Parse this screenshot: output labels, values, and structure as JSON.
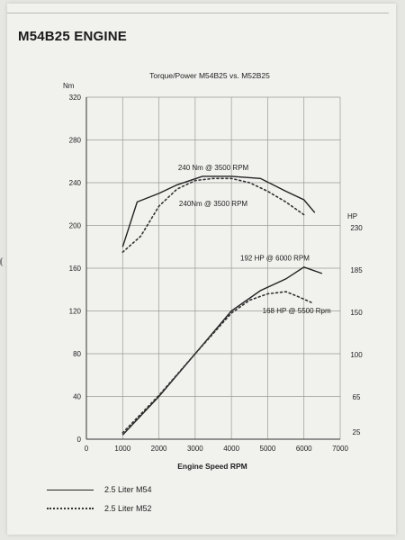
{
  "page": {
    "heading": "M54B25 ENGINE"
  },
  "chart_data": {
    "type": "line",
    "title": "Torque/Power M54B25 vs. M52B25",
    "xlabel": "Engine Speed RPM",
    "xlim": [
      0,
      7000
    ],
    "x_ticks": [
      0,
      1000,
      2000,
      3000,
      4000,
      5000,
      6000,
      7000
    ],
    "grid": true,
    "left_axis": {
      "unit": "Nm",
      "ylim": [
        0,
        320
      ],
      "ticks": [
        0,
        40,
        80,
        120,
        160,
        200,
        240,
        280,
        320
      ]
    },
    "right_axis": {
      "unit": "HP",
      "tick_labels": [
        "25",
        "65",
        "100",
        "150",
        "185",
        "230"
      ]
    },
    "series": [
      {
        "name": "2.5 Liter M54",
        "axis": "left",
        "style": "solid",
        "color": "#222222",
        "x": [
          1000,
          1400,
          2000,
          2500,
          3200,
          4000,
          4800,
          5500,
          6000,
          6300
        ],
        "y": [
          180,
          222,
          230,
          238,
          246,
          246,
          244,
          232,
          224,
          212
        ]
      },
      {
        "name": "2.5 Liter M52",
        "axis": "left",
        "style": "dotted",
        "color": "#333333",
        "x": [
          1000,
          1500,
          2000,
          2500,
          3000,
          3500,
          4000,
          4500,
          5000,
          5500,
          6000
        ],
        "y": [
          175,
          190,
          218,
          234,
          242,
          244,
          244,
          240,
          232,
          222,
          210
        ]
      },
      {
        "name": "2.5 Liter M54",
        "axis": "left",
        "style": "solid",
        "color": "#222222",
        "x": [
          1000,
          2000,
          3000,
          4000,
          4800,
          5500,
          6000,
          6500
        ],
        "y": [
          4,
          40,
          80,
          120,
          139,
          150,
          161,
          155
        ]
      },
      {
        "name": "2.5 Liter M52",
        "axis": "left",
        "style": "dotted",
        "color": "#333333",
        "x": [
          1000,
          2000,
          3000,
          4000,
          4500,
          5000,
          5500,
          5800,
          6200
        ],
        "y": [
          6,
          41,
          80,
          118,
          130,
          136,
          138,
          134,
          128
        ]
      }
    ],
    "annotations": [
      {
        "text": "240 Nm @ 3500 RPM",
        "x": 3500,
        "y": 252
      },
      {
        "text": "240Nm @ 3500 RPM",
        "x": 3500,
        "y": 218
      },
      {
        "text": "192 HP @ 6000 RPM",
        "x": 5200,
        "y": 167
      },
      {
        "text": "168 HP @ 5500 Rpm",
        "x": 5800,
        "y": 118
      }
    ],
    "legend": {
      "placement": "bottom-left",
      "entries": [
        {
          "label": "2.5 Liter M54",
          "style": "solid"
        },
        {
          "label": "2.5 Liter M52",
          "style": "dotted"
        }
      ]
    }
  }
}
